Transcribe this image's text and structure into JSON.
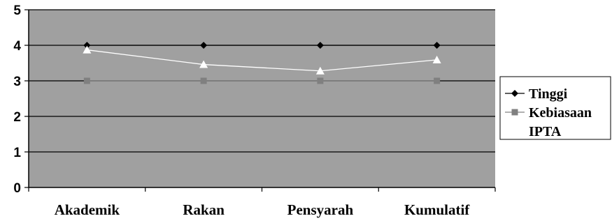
{
  "chart_data": {
    "type": "line",
    "title": "",
    "xlabel": "",
    "ylabel": "",
    "categories": [
      "Akademik",
      "Rakan",
      "Pensyarah",
      "Kumulatif"
    ],
    "y_ticks": [
      "0",
      "1",
      "2",
      "3",
      "4",
      "5"
    ],
    "ylim": [
      0,
      5
    ],
    "grid": true,
    "legend_position": "right",
    "plot_background": "#a0a0a0",
    "series": [
      {
        "name": "Tinggi",
        "values": [
          4,
          4,
          4,
          4
        ],
        "color": "#000000",
        "marker": "diamond"
      },
      {
        "name": "Kebiasaan",
        "values": [
          3,
          3,
          3,
          3
        ],
        "color": "#808080",
        "marker": "square"
      },
      {
        "name": "IPTA",
        "values": [
          3.87,
          3.46,
          3.28,
          3.59
        ],
        "color": "#ffffff",
        "marker": "triangle"
      }
    ]
  }
}
